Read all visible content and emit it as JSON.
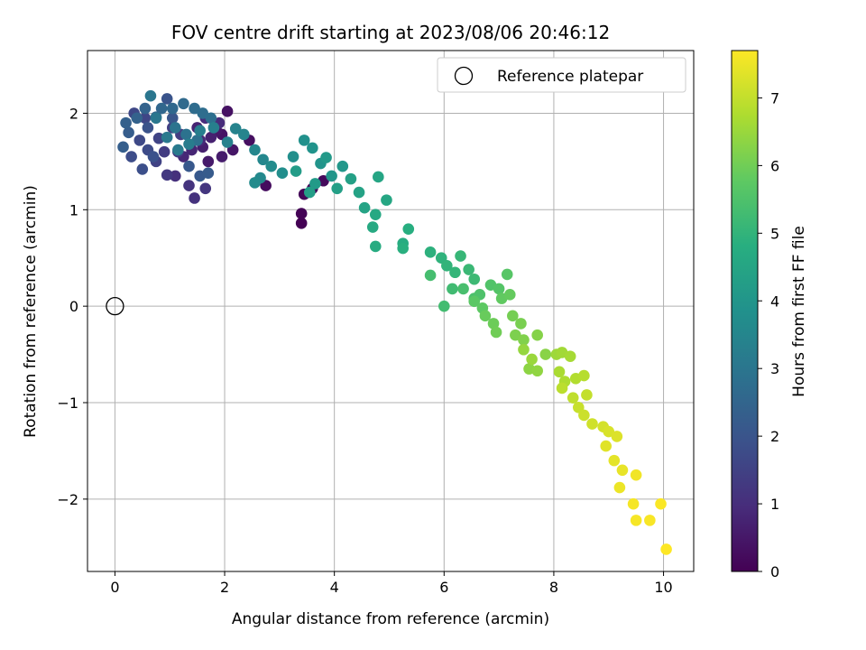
{
  "chart_data": {
    "type": "scatter",
    "title": "FOV centre drift starting at 2023/08/06 20:46:12",
    "xlabel": "Angular distance from reference (arcmin)",
    "ylabel": "Rotation from reference (arcmin)",
    "xlim": [
      -0.5,
      10.55
    ],
    "ylim": [
      -2.75,
      2.65
    ],
    "xticks": [
      0,
      2,
      4,
      6,
      8,
      10
    ],
    "yticks": [
      -2,
      -1,
      0,
      1,
      2
    ],
    "xtick_labels": [
      "0",
      "2",
      "4",
      "6",
      "8",
      "10"
    ],
    "ytick_labels": [
      "−2",
      "−1",
      "0",
      "1",
      "2"
    ],
    "grid": true,
    "legend": {
      "position": "top-right",
      "entries": [
        "Reference platepar"
      ]
    },
    "colorbar": {
      "label": "Hours from first FF file",
      "colormap": "viridis",
      "range": [
        0,
        7.7
      ],
      "ticks": [
        0,
        1,
        2,
        3,
        4,
        5,
        6,
        7
      ],
      "tick_labels": [
        "0",
        "1",
        "2",
        "3",
        "4",
        "5",
        "6",
        "7"
      ]
    },
    "reference_point": {
      "x": 0,
      "y": 0,
      "label": "Reference platepar",
      "marker": "open-circle"
    },
    "series": [
      {
        "color_dimension": "Hours from first FF file",
        "points": [
          [
            3.4,
            0.86,
            0.0
          ],
          [
            3.4,
            0.96,
            0.05
          ],
          [
            3.45,
            1.16,
            0.1
          ],
          [
            3.6,
            1.22,
            0.15
          ],
          [
            3.8,
            1.3,
            0.2
          ],
          [
            2.75,
            1.25,
            0.25
          ],
          [
            2.45,
            1.72,
            0.3
          ],
          [
            2.05,
            2.02,
            0.35
          ],
          [
            1.95,
            1.78,
            0.4
          ],
          [
            2.15,
            1.62,
            0.45
          ],
          [
            1.85,
            1.82,
            0.5
          ],
          [
            1.7,
            1.5,
            0.55
          ],
          [
            1.95,
            1.55,
            0.6
          ],
          [
            1.6,
            1.65,
            0.65
          ],
          [
            1.75,
            1.75,
            0.7
          ],
          [
            1.5,
            1.85,
            0.75
          ],
          [
            1.4,
            1.62,
            0.8
          ],
          [
            1.25,
            1.55,
            0.85
          ],
          [
            1.55,
            1.72,
            0.9
          ],
          [
            1.9,
            1.9,
            0.95
          ],
          [
            1.65,
            1.95,
            1.0
          ],
          [
            1.1,
            1.35,
            1.05
          ],
          [
            1.45,
            1.12,
            1.1
          ],
          [
            1.35,
            1.25,
            1.15
          ],
          [
            1.65,
            1.22,
            1.2
          ],
          [
            0.95,
            1.36,
            1.25
          ],
          [
            1.15,
            1.6,
            1.3
          ],
          [
            0.9,
            1.6,
            1.35
          ],
          [
            1.2,
            1.78,
            1.4
          ],
          [
            1.05,
            1.85,
            1.45
          ],
          [
            0.75,
            1.5,
            1.5
          ],
          [
            0.8,
            1.74,
            1.55
          ],
          [
            0.55,
            1.95,
            1.6
          ],
          [
            0.35,
            2.0,
            1.65
          ],
          [
            0.45,
            1.72,
            1.7
          ],
          [
            0.6,
            1.62,
            1.75
          ],
          [
            0.3,
            1.55,
            1.8
          ],
          [
            0.5,
            1.42,
            1.85
          ],
          [
            0.7,
            1.55,
            1.9
          ],
          [
            0.6,
            1.85,
            1.95
          ],
          [
            0.95,
            2.15,
            2.0
          ],
          [
            1.05,
            1.95,
            2.05
          ],
          [
            1.35,
            1.45,
            2.1
          ],
          [
            1.55,
            1.35,
            2.15
          ],
          [
            1.7,
            1.38,
            2.2
          ],
          [
            0.25,
            1.8,
            2.25
          ],
          [
            0.15,
            1.65,
            2.3
          ],
          [
            0.2,
            1.9,
            2.35
          ],
          [
            0.4,
            1.95,
            2.4
          ],
          [
            0.55,
            2.05,
            2.45
          ],
          [
            0.75,
            1.96,
            2.5
          ],
          [
            0.85,
            2.05,
            2.55
          ],
          [
            1.05,
            2.05,
            2.6
          ],
          [
            1.25,
            2.1,
            2.65
          ],
          [
            1.45,
            2.05,
            2.7
          ],
          [
            1.6,
            2.0,
            2.75
          ],
          [
            1.75,
            1.95,
            2.8
          ],
          [
            1.5,
            1.72,
            2.85
          ],
          [
            1.3,
            1.78,
            2.9
          ],
          [
            1.1,
            1.85,
            2.95
          ],
          [
            0.65,
            2.18,
            3.0
          ],
          [
            0.75,
            1.95,
            3.05
          ],
          [
            0.95,
            1.75,
            3.1
          ],
          [
            1.15,
            1.62,
            3.15
          ],
          [
            1.35,
            1.68,
            3.2
          ],
          [
            1.55,
            1.82,
            3.25
          ],
          [
            1.8,
            1.85,
            3.3
          ],
          [
            2.05,
            1.7,
            3.35
          ],
          [
            2.2,
            1.84,
            3.4
          ],
          [
            2.35,
            1.78,
            3.45
          ],
          [
            2.55,
            1.62,
            3.5
          ],
          [
            2.7,
            1.52,
            3.55
          ],
          [
            2.65,
            1.33,
            3.6
          ],
          [
            2.55,
            1.28,
            3.65
          ],
          [
            2.85,
            1.45,
            3.7
          ],
          [
            3.05,
            1.38,
            3.75
          ],
          [
            3.25,
            1.55,
            3.8
          ],
          [
            3.45,
            1.72,
            3.85
          ],
          [
            3.6,
            1.64,
            3.9
          ],
          [
            3.75,
            1.48,
            3.95
          ],
          [
            3.95,
            1.35,
            4.0
          ],
          [
            4.15,
            1.45,
            4.05
          ],
          [
            3.85,
            1.54,
            4.1
          ],
          [
            3.65,
            1.27,
            4.15
          ],
          [
            3.3,
            1.4,
            4.2
          ],
          [
            3.55,
            1.18,
            4.25
          ],
          [
            4.05,
            1.22,
            4.3
          ],
          [
            4.3,
            1.32,
            4.35
          ],
          [
            4.45,
            1.18,
            4.4
          ],
          [
            4.55,
            1.02,
            4.45
          ],
          [
            4.8,
            1.34,
            4.5
          ],
          [
            4.95,
            1.1,
            4.55
          ],
          [
            4.75,
            0.95,
            4.6
          ],
          [
            4.7,
            0.82,
            4.65
          ],
          [
            4.75,
            0.62,
            4.7
          ],
          [
            5.25,
            0.65,
            4.75
          ],
          [
            5.35,
            0.8,
            4.8
          ],
          [
            5.25,
            0.6,
            4.85
          ],
          [
            5.75,
            0.56,
            4.9
          ],
          [
            5.95,
            0.5,
            4.95
          ],
          [
            6.05,
            0.42,
            5.0
          ],
          [
            6.2,
            0.35,
            5.05
          ],
          [
            6.3,
            0.52,
            5.1
          ],
          [
            6.45,
            0.38,
            5.15
          ],
          [
            6.55,
            0.28,
            5.2
          ],
          [
            6.15,
            0.18,
            5.25
          ],
          [
            6.0,
            0.0,
            5.3
          ],
          [
            5.75,
            0.32,
            5.35
          ],
          [
            6.35,
            0.18,
            5.4
          ],
          [
            6.55,
            0.08,
            5.45
          ],
          [
            6.65,
            0.12,
            5.5
          ],
          [
            6.85,
            0.22,
            5.55
          ],
          [
            7.0,
            0.18,
            5.6
          ],
          [
            7.15,
            0.33,
            5.65
          ],
          [
            6.55,
            0.05,
            5.7
          ],
          [
            6.7,
            -0.02,
            5.75
          ],
          [
            7.05,
            0.08,
            5.8
          ],
          [
            7.2,
            0.12,
            5.85
          ],
          [
            6.75,
            -0.1,
            5.9
          ],
          [
            6.9,
            -0.18,
            5.95
          ],
          [
            6.95,
            -0.27,
            6.0
          ],
          [
            7.25,
            -0.1,
            6.05
          ],
          [
            7.4,
            -0.18,
            6.1
          ],
          [
            7.3,
            -0.3,
            6.15
          ],
          [
            7.45,
            -0.35,
            6.2
          ],
          [
            7.7,
            -0.3,
            6.25
          ],
          [
            7.85,
            -0.5,
            6.3
          ],
          [
            7.55,
            -0.65,
            6.35
          ],
          [
            7.7,
            -0.67,
            6.4
          ],
          [
            7.45,
            -0.45,
            6.45
          ],
          [
            7.6,
            -0.55,
            6.5
          ],
          [
            8.05,
            -0.5,
            6.55
          ],
          [
            8.15,
            -0.48,
            6.6
          ],
          [
            8.3,
            -0.52,
            6.65
          ],
          [
            8.1,
            -0.68,
            6.7
          ],
          [
            8.2,
            -0.78,
            6.75
          ],
          [
            8.4,
            -0.75,
            6.8
          ],
          [
            8.55,
            -0.72,
            6.85
          ],
          [
            8.15,
            -0.85,
            6.9
          ],
          [
            8.35,
            -0.95,
            6.95
          ],
          [
            8.6,
            -0.92,
            7.0
          ],
          [
            8.45,
            -1.05,
            7.05
          ],
          [
            8.55,
            -1.13,
            7.1
          ],
          [
            8.7,
            -1.22,
            7.15
          ],
          [
            8.9,
            -1.25,
            7.2
          ],
          [
            9.0,
            -1.3,
            7.25
          ],
          [
            9.15,
            -1.35,
            7.3
          ],
          [
            8.95,
            -1.45,
            7.35
          ],
          [
            9.1,
            -1.6,
            7.4
          ],
          [
            9.25,
            -1.7,
            7.45
          ],
          [
            9.2,
            -1.88,
            7.5
          ],
          [
            9.5,
            -1.75,
            7.55
          ],
          [
            9.45,
            -2.05,
            7.6
          ],
          [
            9.5,
            -2.22,
            7.62
          ],
          [
            9.75,
            -2.22,
            7.64
          ],
          [
            9.95,
            -2.05,
            7.66
          ],
          [
            10.05,
            -2.52,
            7.7
          ]
        ]
      }
    ]
  }
}
